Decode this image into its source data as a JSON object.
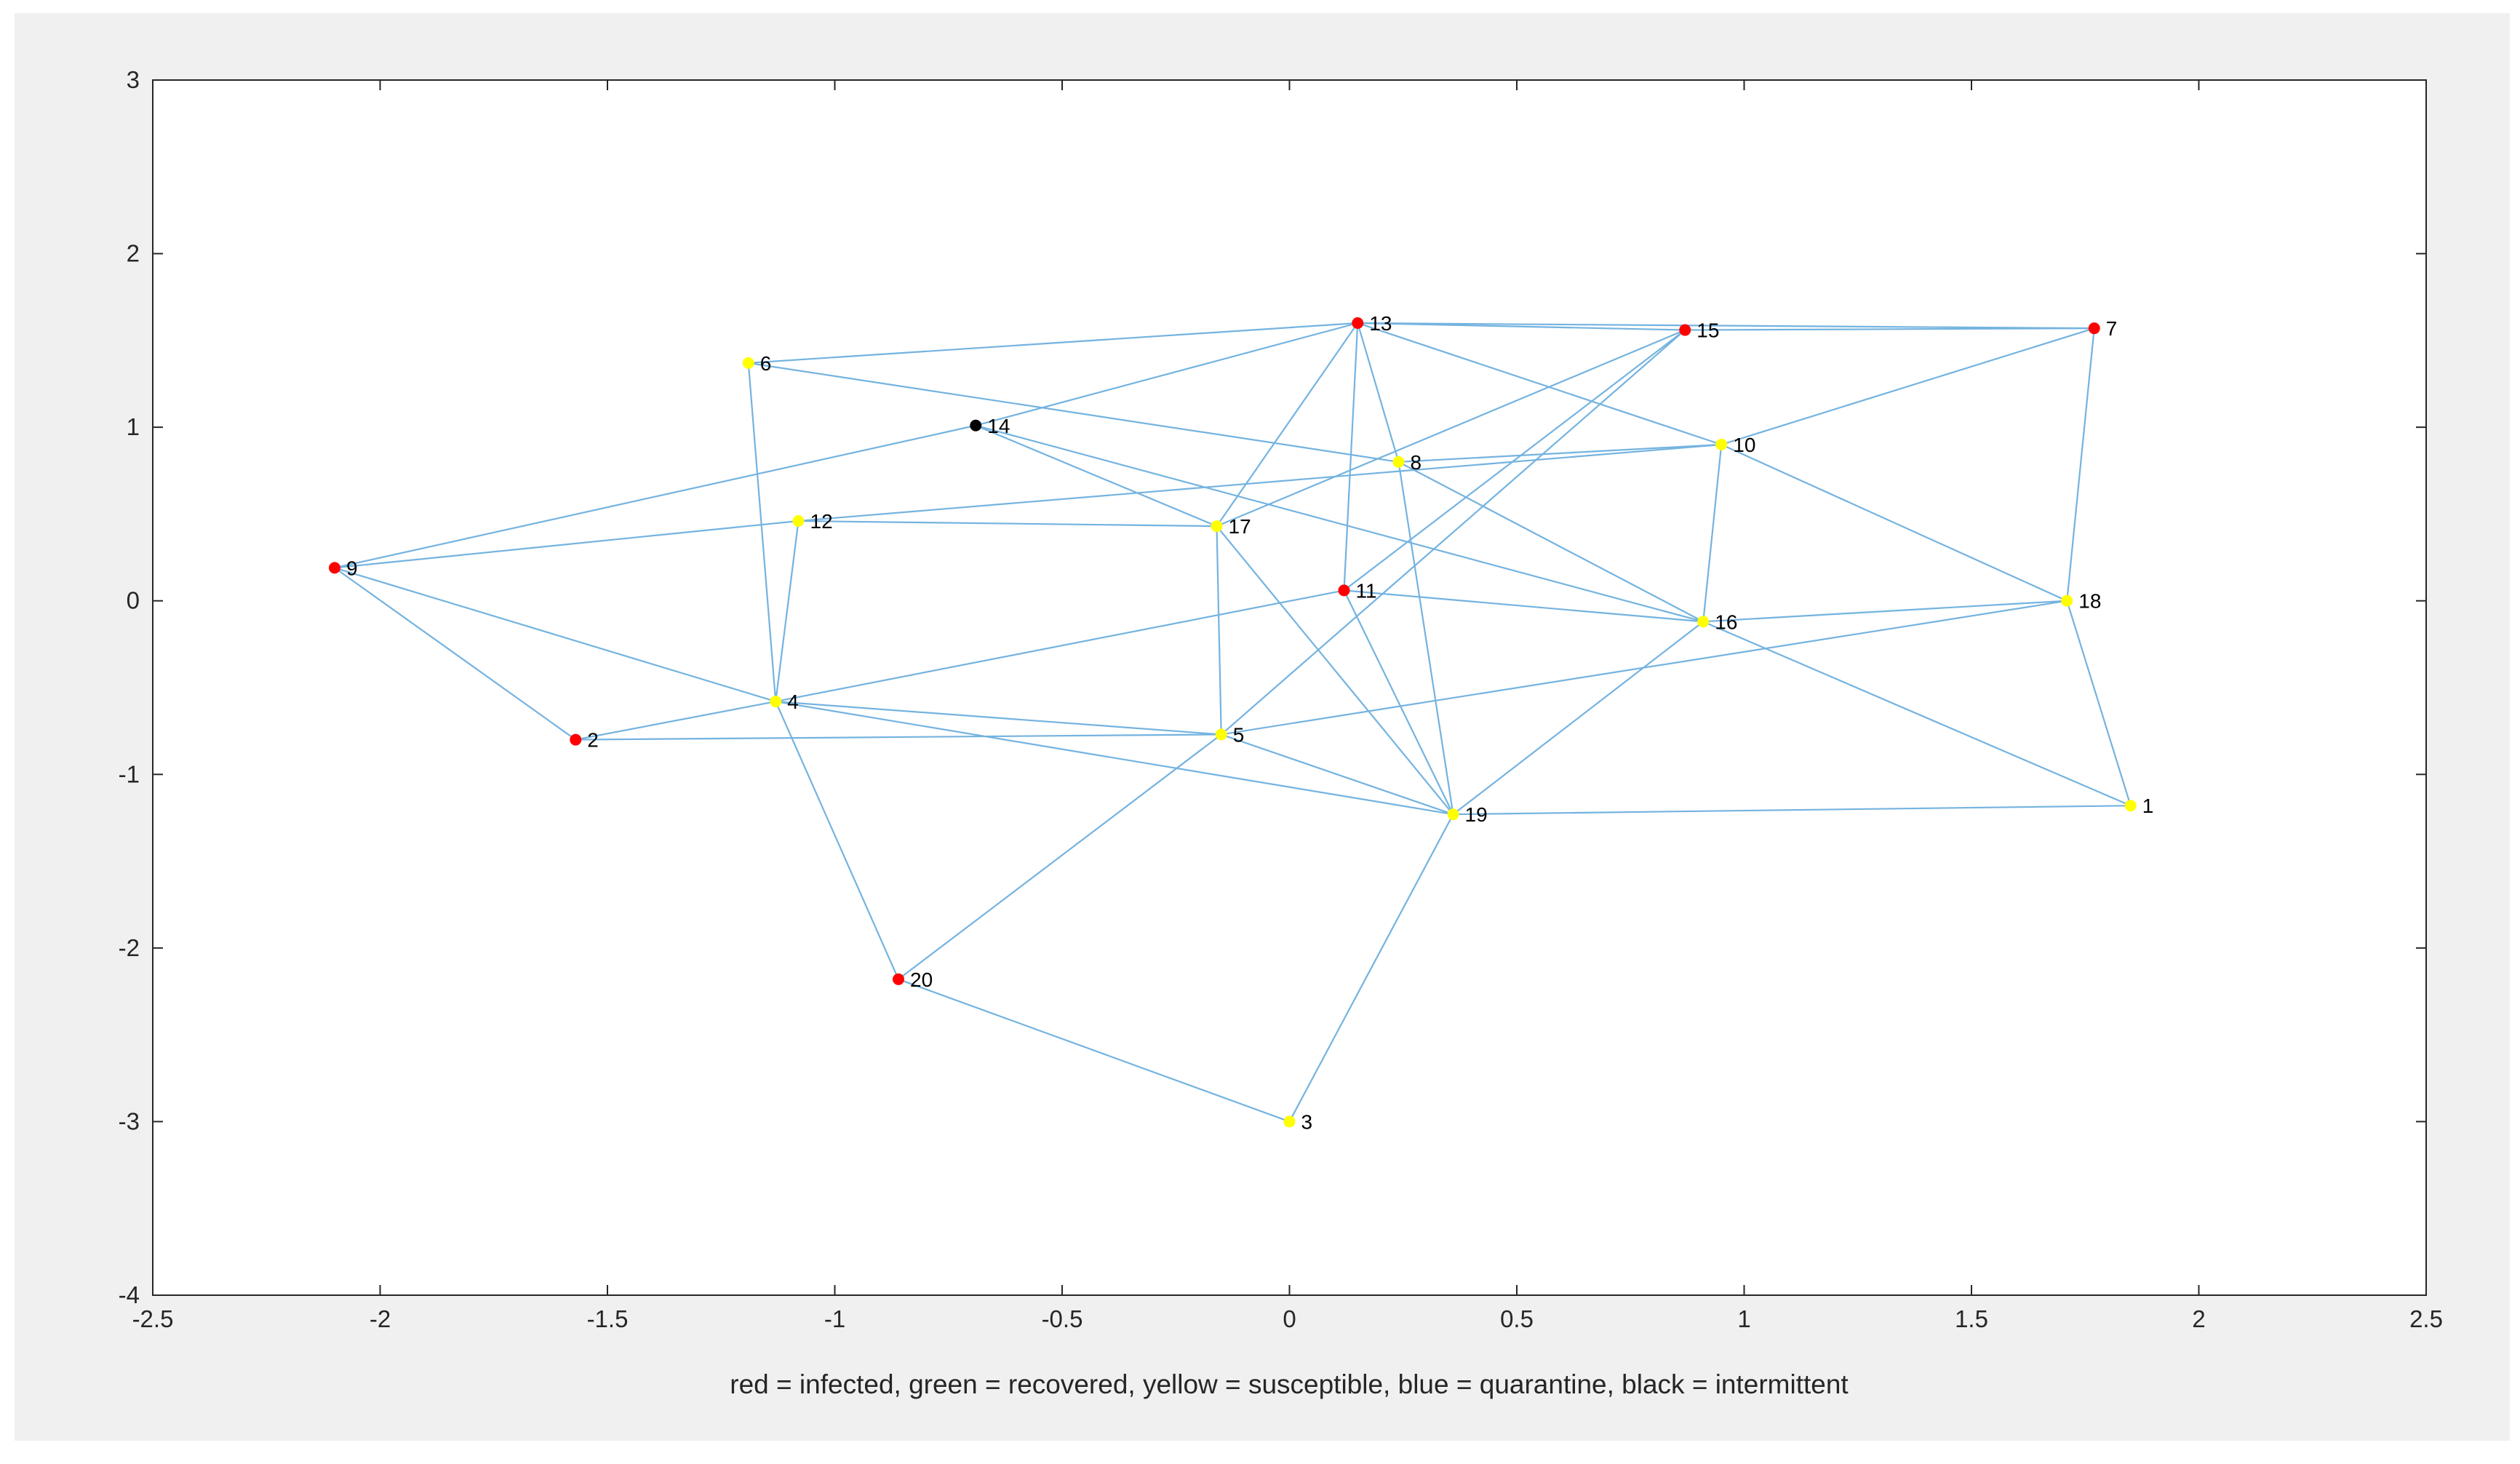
{
  "chart_data": {
    "type": "scatter",
    "subtype": "network-graph",
    "title": "",
    "xlabel": "red = infected, green = recovered, yellow = susceptible, blue = quarantine, black = intermittent",
    "ylabel": "",
    "xlim": [
      -2.5,
      2.5
    ],
    "ylim": [
      -4,
      3
    ],
    "xticks": [
      -2.5,
      -2,
      -1.5,
      -1,
      -0.5,
      0,
      0.5,
      1,
      1.5,
      2,
      2.5
    ],
    "xtick_labels": [
      "-2.5",
      "-2",
      "-1.5",
      "-1",
      "-0.5",
      "0",
      "0.5",
      "1",
      "1.5",
      "2",
      "2.5"
    ],
    "yticks": [
      -4,
      -3,
      -2,
      -1,
      0,
      1,
      2,
      3
    ],
    "ytick_labels": [
      "-4",
      "-3",
      "-2",
      "-1",
      "0",
      "1",
      "2",
      "3"
    ],
    "grid": false,
    "legend": "none",
    "colors": {
      "edge": "#74b3e0",
      "infected": "#ff0000",
      "susceptible": "#ffff00",
      "intermittent": "#000000",
      "recovered": "#00ff00",
      "quarantine": "#0000ff"
    },
    "nodes": [
      {
        "id": "1",
        "x": 1.85,
        "y": -1.18,
        "state": "susceptible"
      },
      {
        "id": "2",
        "x": -1.57,
        "y": -0.8,
        "state": "infected"
      },
      {
        "id": "3",
        "x": 0.0,
        "y": -3.0,
        "state": "susceptible"
      },
      {
        "id": "4",
        "x": -1.13,
        "y": -0.58,
        "state": "susceptible"
      },
      {
        "id": "5",
        "x": -0.15,
        "y": -0.77,
        "state": "susceptible"
      },
      {
        "id": "6",
        "x": -1.19,
        "y": 1.37,
        "state": "susceptible"
      },
      {
        "id": "7",
        "x": 1.77,
        "y": 1.57,
        "state": "infected"
      },
      {
        "id": "8",
        "x": 0.24,
        "y": 0.8,
        "state": "susceptible"
      },
      {
        "id": "9",
        "x": -2.1,
        "y": 0.19,
        "state": "infected"
      },
      {
        "id": "10",
        "x": 0.95,
        "y": 0.9,
        "state": "susceptible"
      },
      {
        "id": "11",
        "x": 0.12,
        "y": 0.06,
        "state": "infected"
      },
      {
        "id": "12",
        "x": -1.08,
        "y": 0.46,
        "state": "susceptible"
      },
      {
        "id": "13",
        "x": 0.15,
        "y": 1.6,
        "state": "infected"
      },
      {
        "id": "14",
        "x": -0.69,
        "y": 1.01,
        "state": "intermittent"
      },
      {
        "id": "15",
        "x": 0.87,
        "y": 1.56,
        "state": "infected"
      },
      {
        "id": "16",
        "x": 0.91,
        "y": -0.12,
        "state": "susceptible"
      },
      {
        "id": "17",
        "x": -0.16,
        "y": 0.43,
        "state": "susceptible"
      },
      {
        "id": "18",
        "x": 1.71,
        "y": 0.0,
        "state": "susceptible"
      },
      {
        "id": "19",
        "x": 0.36,
        "y": -1.23,
        "state": "susceptible"
      },
      {
        "id": "20",
        "x": -0.86,
        "y": -2.18,
        "state": "infected"
      }
    ],
    "edges": [
      [
        "6",
        "13"
      ],
      [
        "6",
        "4"
      ],
      [
        "6",
        "8"
      ],
      [
        "13",
        "15"
      ],
      [
        "13",
        "10"
      ],
      [
        "13",
        "14"
      ],
      [
        "13",
        "17"
      ],
      [
        "13",
        "11"
      ],
      [
        "13",
        "8"
      ],
      [
        "15",
        "7"
      ],
      [
        "15",
        "17"
      ],
      [
        "15",
        "11"
      ],
      [
        "15",
        "5"
      ],
      [
        "13",
        "7"
      ],
      [
        "7",
        "10"
      ],
      [
        "7",
        "18"
      ],
      [
        "14",
        "9"
      ],
      [
        "14",
        "17"
      ],
      [
        "14",
        "16"
      ],
      [
        "9",
        "12"
      ],
      [
        "9",
        "4"
      ],
      [
        "9",
        "2"
      ],
      [
        "12",
        "17"
      ],
      [
        "12",
        "4"
      ],
      [
        "12",
        "10"
      ],
      [
        "17",
        "5"
      ],
      [
        "17",
        "19"
      ],
      [
        "8",
        "10"
      ],
      [
        "8",
        "16"
      ],
      [
        "8",
        "19"
      ],
      [
        "10",
        "16"
      ],
      [
        "10",
        "18"
      ],
      [
        "11",
        "16"
      ],
      [
        "11",
        "4"
      ],
      [
        "11",
        "19"
      ],
      [
        "16",
        "18"
      ],
      [
        "16",
        "1"
      ],
      [
        "16",
        "19"
      ],
      [
        "18",
        "1"
      ],
      [
        "18",
        "5"
      ],
      [
        "1",
        "19"
      ],
      [
        "4",
        "2"
      ],
      [
        "4",
        "5"
      ],
      [
        "4",
        "19"
      ],
      [
        "4",
        "20"
      ],
      [
        "2",
        "5"
      ],
      [
        "5",
        "19"
      ],
      [
        "5",
        "20"
      ],
      [
        "20",
        "3"
      ],
      [
        "19",
        "3"
      ]
    ]
  }
}
